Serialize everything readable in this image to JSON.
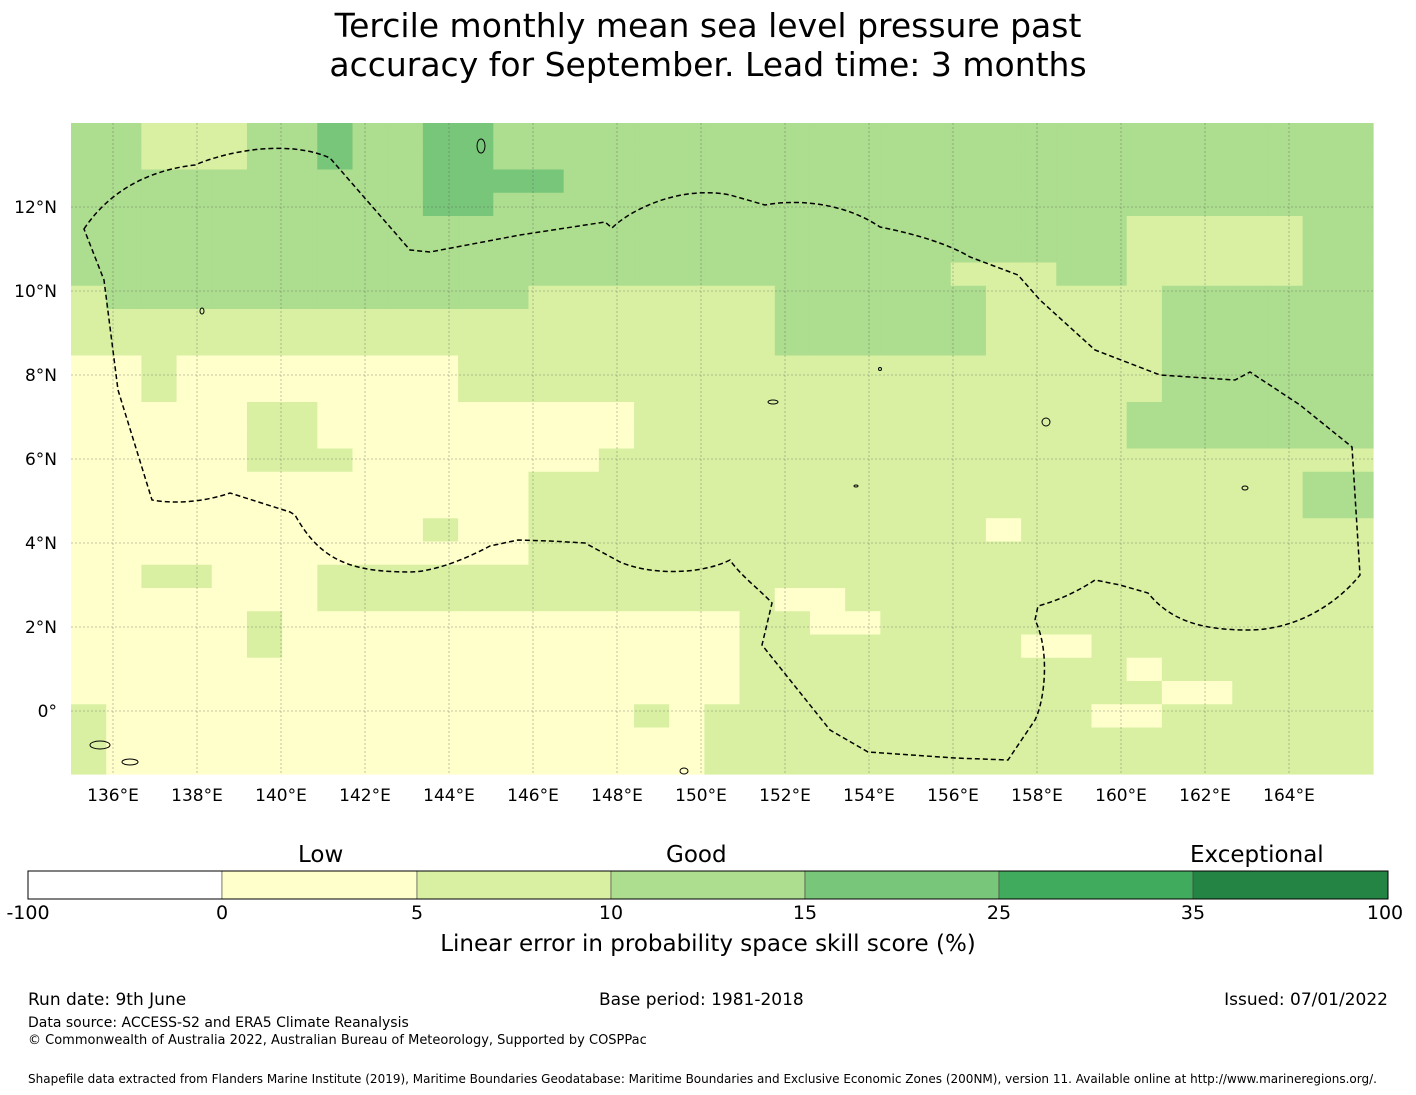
{
  "title": {
    "line1": "Tercile monthly mean sea level pressure past",
    "line2": "accuracy for September. Lead time: 3 months"
  },
  "map": {
    "lat_labels": [
      "12°N",
      "10°N",
      "8°N",
      "6°N",
      "4°N",
      "2°N",
      "0°"
    ],
    "lon_labels": [
      "136°E",
      "138°E",
      "140°E",
      "142°E",
      "144°E",
      "146°E",
      "148°E",
      "150°E",
      "152°E",
      "154°E",
      "156°E",
      "158°E",
      "160°E",
      "162°E",
      "164°E"
    ],
    "colors": {
      "low": "#ffffcc",
      "low_mid": "#d9f0a3",
      "good": "#addd8e",
      "high": "#78c679",
      "very_high": "#41ab5d",
      "exceptional": "#238443",
      "none": "#ffffff"
    }
  },
  "colorbar": {
    "categories": {
      "low": "Low",
      "good": "Good",
      "exceptional": "Exceptional"
    },
    "ticks": [
      "-100",
      "0",
      "5",
      "10",
      "15",
      "25",
      "35",
      "100"
    ],
    "label": "Linear error in probability space skill score (%)"
  },
  "footer": {
    "run_date": "Run date: 9th June",
    "base_period": "Base period: 1981-2018",
    "issued": "Issued: 07/01/2022",
    "data_source": "Data source: ACCESS-S2 and ERA5 Climate Reanalysis",
    "copyright": "© Commonwealth of Australia 2022, Australian Bureau of Meteorology, Supported by COSPPac",
    "shapefile": "Shapefile data extracted from Flanders Marine Institute (2019), Maritime Boundaries Geodatabase: Maritime Boundaries and Exclusive Economic Zones (200NM), version 11. Available online at http://www.marineregions.org/."
  }
}
